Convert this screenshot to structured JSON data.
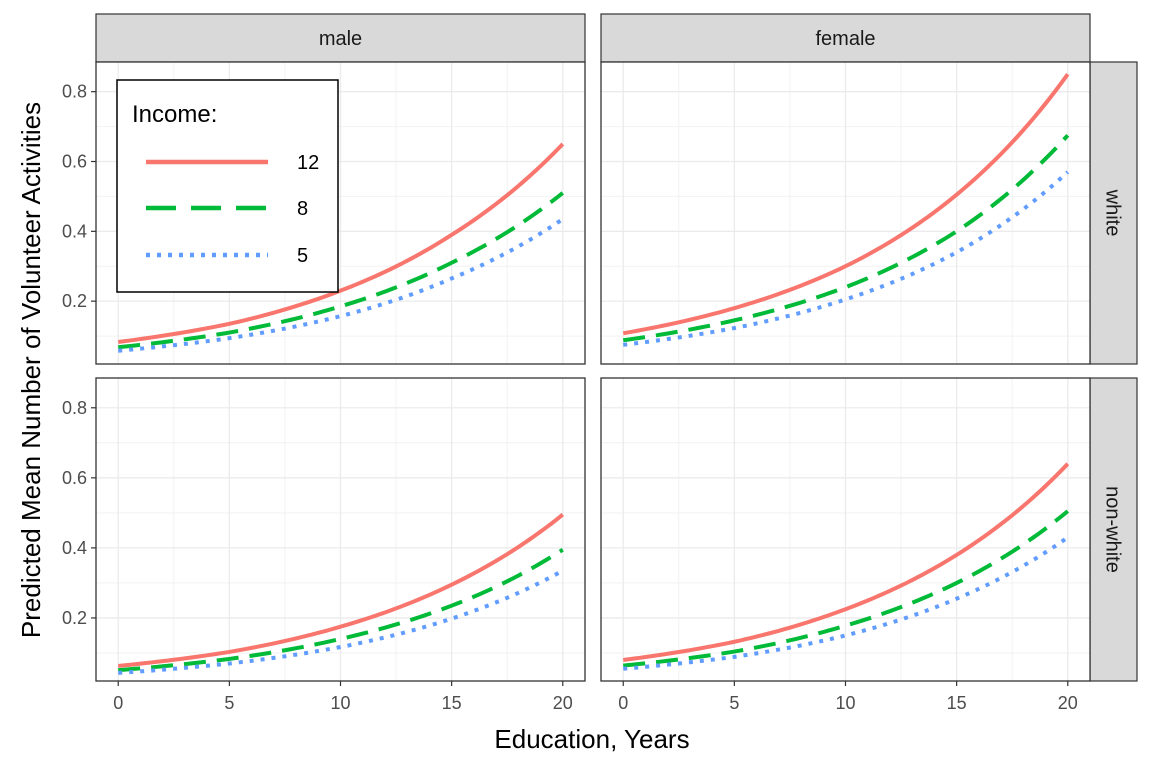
{
  "chart_data": {
    "type": "line",
    "xlabel": "Education, Years",
    "ylabel": "Predicted Mean Number of Volunteer Activities",
    "xlim": [
      -1,
      21
    ],
    "ylim": [
      0.02,
      0.885
    ],
    "x_ticks": [
      0,
      5,
      10,
      15,
      20
    ],
    "x_tick_labels": [
      "0",
      "5",
      "10",
      "15",
      "20"
    ],
    "y_ticks": [
      0.2,
      0.4,
      0.6,
      0.8
    ],
    "y_tick_labels": [
      "0.2",
      "0.4",
      "0.6",
      "0.8"
    ],
    "grid": true,
    "columns": [
      "male",
      "female"
    ],
    "rows": [
      "white",
      "non-white"
    ],
    "legend": {
      "title": "Income:",
      "position": "inside top-left",
      "entries": [
        {
          "label": "12",
          "color": "#F8766D",
          "dash": "solid"
        },
        {
          "label": "8",
          "color": "#00BA38",
          "dash": "dashed"
        },
        {
          "label": "5",
          "color": "#619CFF",
          "dash": "dotted"
        }
      ]
    },
    "panels": [
      {
        "col": "male",
        "row": "white",
        "series": [
          {
            "name": "12",
            "x": [
              0,
              5,
              10,
              15,
              20
            ],
            "y": [
              0.083,
              0.135,
              0.23,
              0.39,
              0.65
            ]
          },
          {
            "name": "8",
            "x": [
              0,
              5,
              10,
              15,
              20
            ],
            "y": [
              0.068,
              0.11,
              0.185,
              0.31,
              0.51
            ]
          },
          {
            "name": "5",
            "x": [
              0,
              5,
              10,
              15,
              20
            ],
            "y": [
              0.058,
              0.094,
              0.157,
              0.265,
              0.435
            ]
          }
        ]
      },
      {
        "col": "female",
        "row": "white",
        "series": [
          {
            "name": "12",
            "x": [
              0,
              5,
              10,
              15,
              20
            ],
            "y": [
              0.108,
              0.18,
              0.3,
              0.505,
              0.85
            ]
          },
          {
            "name": "8",
            "x": [
              0,
              5,
              10,
              15,
              20
            ],
            "y": [
              0.088,
              0.145,
              0.24,
              0.4,
              0.675
            ]
          },
          {
            "name": "5",
            "x": [
              0,
              5,
              10,
              15,
              20
            ],
            "y": [
              0.075,
              0.123,
              0.205,
              0.34,
              0.57
            ]
          }
        ]
      },
      {
        "col": "male",
        "row": "non-white",
        "series": [
          {
            "name": "12",
            "x": [
              0,
              5,
              10,
              15,
              20
            ],
            "y": [
              0.063,
              0.103,
              0.175,
              0.295,
              0.495
            ]
          },
          {
            "name": "8",
            "x": [
              0,
              5,
              10,
              15,
              20
            ],
            "y": [
              0.051,
              0.083,
              0.14,
              0.235,
              0.395
            ]
          },
          {
            "name": "5",
            "x": [
              0,
              5,
              10,
              15,
              20
            ],
            "y": [
              0.043,
              0.07,
              0.117,
              0.198,
              0.335
            ]
          }
        ]
      },
      {
        "col": "female",
        "row": "non-white",
        "series": [
          {
            "name": "12",
            "x": [
              0,
              5,
              10,
              15,
              20
            ],
            "y": [
              0.08,
              0.132,
              0.225,
              0.38,
              0.64
            ]
          },
          {
            "name": "8",
            "x": [
              0,
              5,
              10,
              15,
              20
            ],
            "y": [
              0.064,
              0.104,
              0.178,
              0.3,
              0.505
            ]
          },
          {
            "name": "5",
            "x": [
              0,
              5,
              10,
              15,
              20
            ],
            "y": [
              0.055,
              0.089,
              0.15,
              0.255,
              0.43
            ]
          }
        ]
      }
    ]
  }
}
